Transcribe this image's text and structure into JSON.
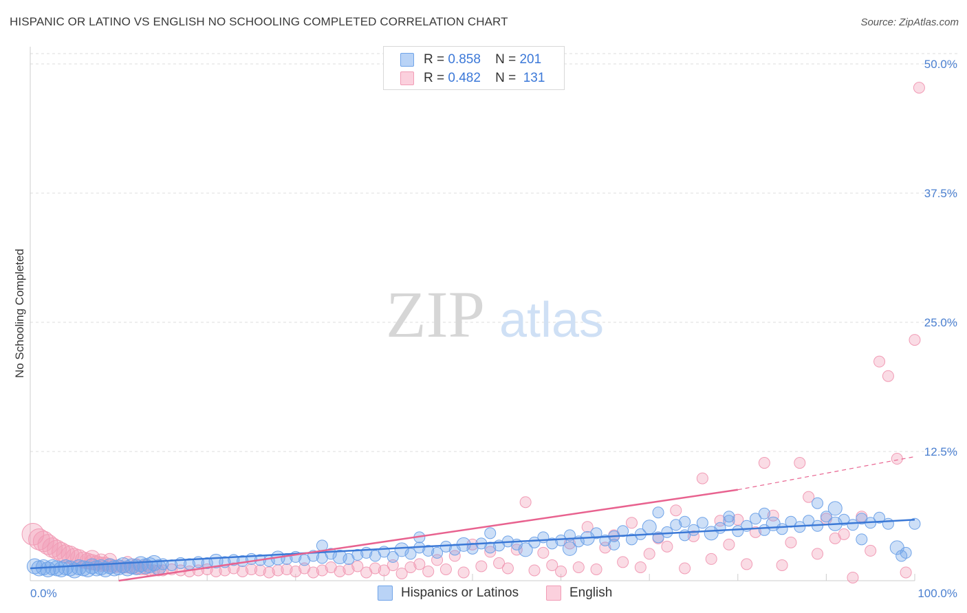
{
  "title": "HISPANIC OR LATINO VS ENGLISH NO SCHOOLING COMPLETED CORRELATION CHART",
  "source": "Source: ZipAtlas.com",
  "legend": {
    "row1": {
      "r_label": "R =",
      "r_value": "0.858",
      "n_label": "N =",
      "n_value": "201"
    },
    "row2": {
      "r_label": "R =",
      "r_value": "0.482",
      "n_label": "N =",
      "n_value": "131"
    }
  },
  "series_labels": {
    "blue": "Hispanics or Latinos",
    "pink": "English"
  },
  "colors": {
    "blue": "#6fa3e8",
    "blue_line": "#3a78d6",
    "pink": "#f19bb5",
    "pink_line": "#e8628f",
    "tick": "#4a7fd0"
  },
  "chart_data": {
    "type": "scatter",
    "title": "HISPANIC OR LATINO VS ENGLISH NO SCHOOLING COMPLETED CORRELATION CHART",
    "xlabel": "",
    "ylabel": "No Schooling Completed",
    "xlim": [
      0,
      100
    ],
    "ylim": [
      0,
      51
    ],
    "x_tick_labels": [
      "0.0%",
      "100.0%"
    ],
    "y_ticks": [
      12.5,
      25.0,
      37.5,
      50.0
    ],
    "y_tick_labels": [
      "12.5%",
      "25.0%",
      "37.5%",
      "50.0%"
    ],
    "grid": true,
    "watermark": {
      "zip": "ZIP",
      "atlas": "atlas"
    },
    "series": [
      {
        "name": "Hispanics or Latinos",
        "r": 0.858,
        "n": 201,
        "trend": {
          "x": [
            0,
            100
          ],
          "y": [
            1.2,
            5.9
          ]
        },
        "points": [
          [
            0.5,
            1.4
          ],
          [
            1,
            1.2
          ],
          [
            1.5,
            1.3
          ],
          [
            2,
            1.1
          ],
          [
            2.5,
            1.3
          ],
          [
            3,
            1.2
          ],
          [
            3.5,
            1.1
          ],
          [
            4,
            1.3
          ],
          [
            4.5,
            1.2
          ],
          [
            5,
            1.0
          ],
          [
            5.5,
            1.3
          ],
          [
            6,
            1.2
          ],
          [
            6.5,
            1.1
          ],
          [
            7,
            1.4
          ],
          [
            7.5,
            1.2
          ],
          [
            8,
            1.3
          ],
          [
            8.5,
            1.1
          ],
          [
            9,
            1.4
          ],
          [
            9.5,
            1.2
          ],
          [
            10,
            1.3
          ],
          [
            10.5,
            1.5
          ],
          [
            11,
            1.2
          ],
          [
            11.5,
            1.4
          ],
          [
            12,
            1.3
          ],
          [
            12.5,
            1.6
          ],
          [
            13,
            1.4
          ],
          [
            13.5,
            1.5
          ],
          [
            14,
            1.7
          ],
          [
            14.5,
            1.3
          ],
          [
            15,
            1.6
          ],
          [
            16,
            1.5
          ],
          [
            17,
            1.7
          ],
          [
            18,
            1.6
          ],
          [
            19,
            1.8
          ],
          [
            20,
            1.7
          ],
          [
            21,
            1.9
          ],
          [
            22,
            1.8
          ],
          [
            23,
            2.0
          ],
          [
            24,
            1.9
          ],
          [
            25,
            2.1
          ],
          [
            26,
            2.0
          ],
          [
            27,
            1.9
          ],
          [
            28,
            2.2
          ],
          [
            29,
            2.1
          ],
          [
            30,
            2.3
          ],
          [
            31,
            2.0
          ],
          [
            32,
            2.4
          ],
          [
            33,
            2.2
          ],
          [
            34,
            2.6
          ],
          [
            35,
            2.3
          ],
          [
            36,
            2.1
          ],
          [
            37,
            2.5
          ],
          [
            38,
            2.7
          ],
          [
            39,
            2.4
          ],
          [
            40,
            2.8
          ],
          [
            41,
            2.3
          ],
          [
            42,
            3.0
          ],
          [
            43,
            2.6
          ],
          [
            44,
            3.2
          ],
          [
            45,
            2.9
          ],
          [
            46,
            2.7
          ],
          [
            47,
            3.3
          ],
          [
            48,
            3.0
          ],
          [
            49,
            3.5
          ],
          [
            50,
            3.1
          ],
          [
            51,
            3.6
          ],
          [
            52,
            3.2
          ],
          [
            53,
            3.4
          ],
          [
            54,
            3.8
          ],
          [
            55,
            3.5
          ],
          [
            56,
            3.0
          ],
          [
            57,
            3.7
          ],
          [
            58,
            4.2
          ],
          [
            59,
            3.6
          ],
          [
            60,
            3.9
          ],
          [
            61,
            4.4
          ],
          [
            62,
            3.8
          ],
          [
            63,
            4.1
          ],
          [
            64,
            4.6
          ],
          [
            65,
            3.9
          ],
          [
            66,
            4.3
          ],
          [
            67,
            4.8
          ],
          [
            68,
            4.0
          ],
          [
            69,
            4.5
          ],
          [
            70,
            5.2
          ],
          [
            71,
            4.2
          ],
          [
            72,
            4.7
          ],
          [
            73,
            5.4
          ],
          [
            74,
            4.4
          ],
          [
            75,
            4.9
          ],
          [
            76,
            5.6
          ],
          [
            77,
            4.6
          ],
          [
            78,
            5.1
          ],
          [
            79,
            5.8
          ],
          [
            80,
            4.8
          ],
          [
            81,
            5.3
          ],
          [
            82,
            6.0
          ],
          [
            83,
            4.9
          ],
          [
            84,
            5.5
          ],
          [
            85,
            5.0
          ],
          [
            86,
            5.7
          ],
          [
            87,
            5.2
          ],
          [
            88,
            5.8
          ],
          [
            89,
            5.3
          ],
          [
            90,
            6.2
          ],
          [
            91,
            5.5
          ],
          [
            92,
            5.9
          ],
          [
            93,
            5.4
          ],
          [
            94,
            6.0
          ],
          [
            95,
            5.6
          ],
          [
            96,
            6.1
          ],
          [
            97,
            5.5
          ],
          [
            98,
            3.2
          ],
          [
            98.5,
            2.4
          ],
          [
            99,
            2.7
          ],
          [
            100,
            5.5
          ],
          [
            33,
            3.4
          ],
          [
            44,
            4.2
          ],
          [
            52,
            4.6
          ],
          [
            61,
            3.1
          ],
          [
            66,
            3.5
          ],
          [
            71,
            6.6
          ],
          [
            74,
            5.7
          ],
          [
            79,
            6.2
          ],
          [
            83,
            6.5
          ],
          [
            89,
            7.5
          ],
          [
            91,
            7.0
          ],
          [
            94,
            4.0
          ]
        ]
      },
      {
        "name": "English",
        "r": 0.482,
        "n": 131,
        "trend": {
          "x": [
            10,
            80
          ],
          "y": [
            0.0,
            8.8
          ]
        },
        "trend_dashed": {
          "x": [
            80,
            100
          ],
          "y": [
            8.8,
            12.0
          ]
        },
        "points": [
          [
            0.3,
            4.5
          ],
          [
            1,
            4.0
          ],
          [
            1.5,
            3.8
          ],
          [
            2,
            3.5
          ],
          [
            2.5,
            3.2
          ],
          [
            3,
            3.0
          ],
          [
            3.5,
            2.8
          ],
          [
            4,
            2.6
          ],
          [
            4.5,
            2.5
          ],
          [
            5,
            2.3
          ],
          [
            5.5,
            2.2
          ],
          [
            6,
            2.0
          ],
          [
            6.5,
            1.9
          ],
          [
            7,
            1.8
          ],
          [
            7.5,
            1.7
          ],
          [
            8,
            1.6
          ],
          [
            8.5,
            1.6
          ],
          [
            9,
            1.5
          ],
          [
            9.5,
            1.4
          ],
          [
            10,
            1.4
          ],
          [
            10.5,
            1.3
          ],
          [
            11,
            1.3
          ],
          [
            11.5,
            1.2
          ],
          [
            12,
            1.2
          ],
          [
            12.5,
            1.1
          ],
          [
            13,
            1.1
          ],
          [
            13.5,
            1.0
          ],
          [
            14,
            1.0
          ],
          [
            14.5,
            1.0
          ],
          [
            15,
            1.0
          ],
          [
            16,
            1.1
          ],
          [
            17,
            1.0
          ],
          [
            18,
            0.9
          ],
          [
            19,
            1.0
          ],
          [
            20,
            1.1
          ],
          [
            21,
            0.9
          ],
          [
            22,
            1.0
          ],
          [
            23,
            1.2
          ],
          [
            24,
            0.9
          ],
          [
            25,
            1.1
          ],
          [
            26,
            1.0
          ],
          [
            27,
            0.8
          ],
          [
            28,
            1.0
          ],
          [
            29,
            1.1
          ],
          [
            30,
            0.9
          ],
          [
            31,
            1.2
          ],
          [
            32,
            0.8
          ],
          [
            33,
            1.0
          ],
          [
            34,
            1.3
          ],
          [
            35,
            0.9
          ],
          [
            36,
            1.1
          ],
          [
            37,
            1.4
          ],
          [
            38,
            0.8
          ],
          [
            39,
            1.2
          ],
          [
            40,
            1.0
          ],
          [
            41,
            1.5
          ],
          [
            42,
            0.7
          ],
          [
            43,
            1.3
          ],
          [
            44,
            1.6
          ],
          [
            45,
            0.9
          ],
          [
            46,
            2.0
          ],
          [
            47,
            1.1
          ],
          [
            48,
            2.4
          ],
          [
            49,
            0.8
          ],
          [
            50,
            3.5
          ],
          [
            51,
            1.4
          ],
          [
            52,
            2.8
          ],
          [
            53,
            1.7
          ],
          [
            54,
            1.2
          ],
          [
            55,
            3.0
          ],
          [
            56,
            7.6
          ],
          [
            57,
            1.0
          ],
          [
            58,
            2.7
          ],
          [
            59,
            1.5
          ],
          [
            60,
            0.9
          ],
          [
            61,
            3.6
          ],
          [
            62,
            1.3
          ],
          [
            63,
            5.2
          ],
          [
            64,
            1.1
          ],
          [
            65,
            3.2
          ],
          [
            66,
            4.4
          ],
          [
            67,
            1.8
          ],
          [
            68,
            5.6
          ],
          [
            69,
            1.3
          ],
          [
            70,
            2.6
          ],
          [
            71,
            4.1
          ],
          [
            72,
            3.3
          ],
          [
            73,
            6.8
          ],
          [
            74,
            1.2
          ],
          [
            75,
            4.3
          ],
          [
            76,
            9.9
          ],
          [
            77,
            2.1
          ],
          [
            78,
            5.8
          ],
          [
            79,
            3.5
          ],
          [
            80,
            5.9
          ],
          [
            81,
            1.6
          ],
          [
            82,
            4.7
          ],
          [
            83,
            11.4
          ],
          [
            84,
            6.3
          ],
          [
            85,
            1.5
          ],
          [
            86,
            3.7
          ],
          [
            87,
            11.4
          ],
          [
            88,
            8.1
          ],
          [
            89,
            2.6
          ],
          [
            90,
            6.0
          ],
          [
            91,
            4.1
          ],
          [
            92,
            4.5
          ],
          [
            93,
            0.3
          ],
          [
            94,
            6.2
          ],
          [
            95,
            2.9
          ],
          [
            96,
            21.2
          ],
          [
            97,
            19.8
          ],
          [
            98,
            11.8
          ],
          [
            99,
            0.8
          ],
          [
            100,
            23.3
          ],
          [
            100.5,
            47.7
          ],
          [
            7,
            2.2
          ],
          [
            8,
            1.9
          ],
          [
            9,
            2.0
          ],
          [
            11,
            1.8
          ],
          [
            12,
            1.6
          ],
          [
            13,
            1.5
          ]
        ]
      }
    ]
  }
}
